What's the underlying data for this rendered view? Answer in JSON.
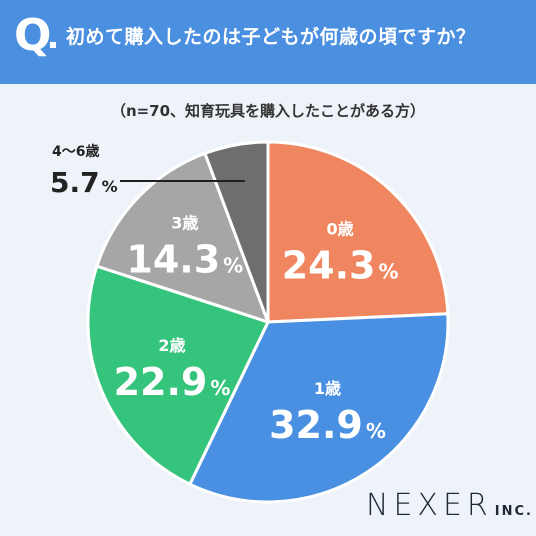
{
  "header": {
    "q_mark": "Q",
    "question": "初めて購入したのは子どもが何歳の頃ですか？"
  },
  "sample_note": "（n=70、知育玩具を購入したことがある方）",
  "brand": {
    "name": "NEXER",
    "suffix": "INC."
  },
  "chart_data": {
    "type": "pie",
    "title": "初めて購入したのは子どもが何歳の頃ですか？",
    "subtitle": "（n=70、知育玩具を購入したことがある方）",
    "unit": "%",
    "slices": [
      {
        "label": "0歳",
        "value": 24.3,
        "display": "24.3",
        "color": "#f0865f"
      },
      {
        "label": "1歳",
        "value": 32.9,
        "display": "32.9",
        "color": "#4a90e2"
      },
      {
        "label": "2歳",
        "value": 22.9,
        "display": "22.9",
        "color": "#35c47c"
      },
      {
        "label": "3歳",
        "value": 14.3,
        "display": "14.3",
        "color": "#a6a6a6"
      },
      {
        "label": "4〜6歳",
        "value": 5.7,
        "display": "5.7",
        "color": "#6e6e6e"
      }
    ]
  }
}
